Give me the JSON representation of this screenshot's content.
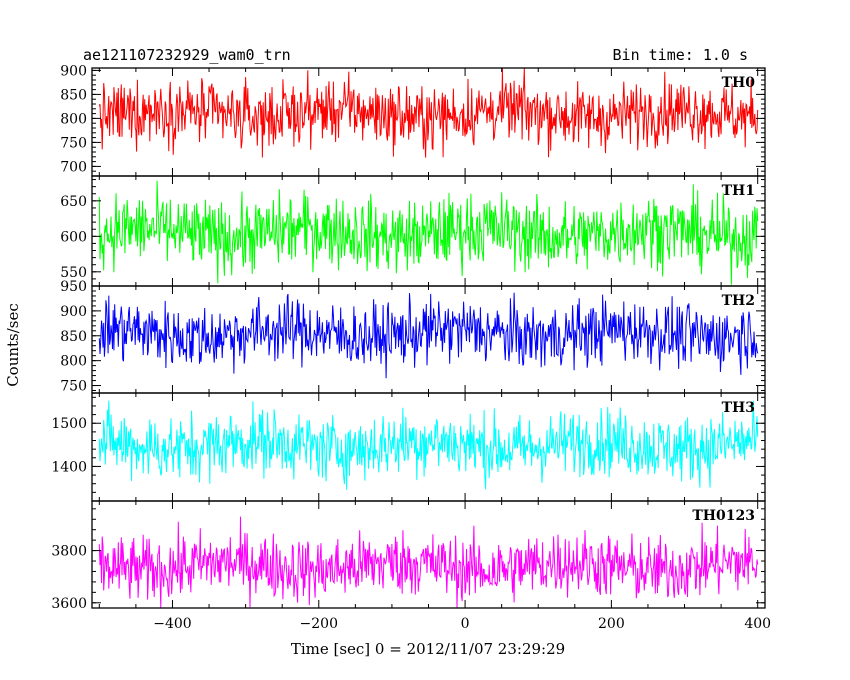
{
  "header": {
    "title": "ae121107232929_wam0_trn",
    "bin_time": "Bin time: 1.0 s"
  },
  "chart_data": {
    "type": "line",
    "title": "ae121107232929_wam0_trn",
    "xlabel": "Time [sec] 0 = 2012/11/07 23:29:29",
    "ylabel": "Counts/sec",
    "xlim": [
      -510,
      410
    ],
    "x_ticks": [
      -400,
      -200,
      0,
      200,
      400
    ],
    "x_tick_labels": [
      "−400",
      "−200",
      "0",
      "200",
      "400"
    ],
    "x_bin": 1.0,
    "x_start": -500,
    "x_end": 400,
    "panels": [
      {
        "name": "TH0",
        "color": "#ff0000",
        "ylim": [
          680,
          905
        ],
        "y_ticks": [
          700,
          750,
          800,
          850,
          900
        ],
        "y_tick_labels": [
          "700",
          "750",
          "800",
          "850",
          "900"
        ],
        "mean": 810,
        "sigma": 33
      },
      {
        "name": "TH1",
        "color": "#00ff00",
        "ylim": [
          530,
          685
        ],
        "y_ticks": [
          550,
          600,
          650
        ],
        "y_tick_labels": [
          "550",
          "600",
          "650"
        ],
        "mean": 605,
        "sigma": 25
      },
      {
        "name": "TH2",
        "color": "#0000ff",
        "ylim": [
          735,
          950
        ],
        "y_ticks": [
          750,
          800,
          850,
          900,
          950
        ],
        "y_tick_labels": [
          "750",
          "800",
          "850",
          "900",
          "950"
        ],
        "mean": 855,
        "sigma": 32
      },
      {
        "name": "TH3",
        "color": "#00ffff",
        "ylim": [
          1320,
          1570
        ],
        "y_ticks": [
          1400,
          1500
        ],
        "y_tick_labels": [
          "1400",
          "1500"
        ],
        "mean": 1450,
        "sigma": 38
      },
      {
        "name": "TH0123",
        "color": "#ff00ff",
        "ylim": [
          3580,
          3990
        ],
        "y_ticks": [
          3600,
          3800
        ],
        "y_tick_labels": [
          "3600",
          "3800"
        ],
        "mean": 3740,
        "sigma": 62
      }
    ]
  }
}
